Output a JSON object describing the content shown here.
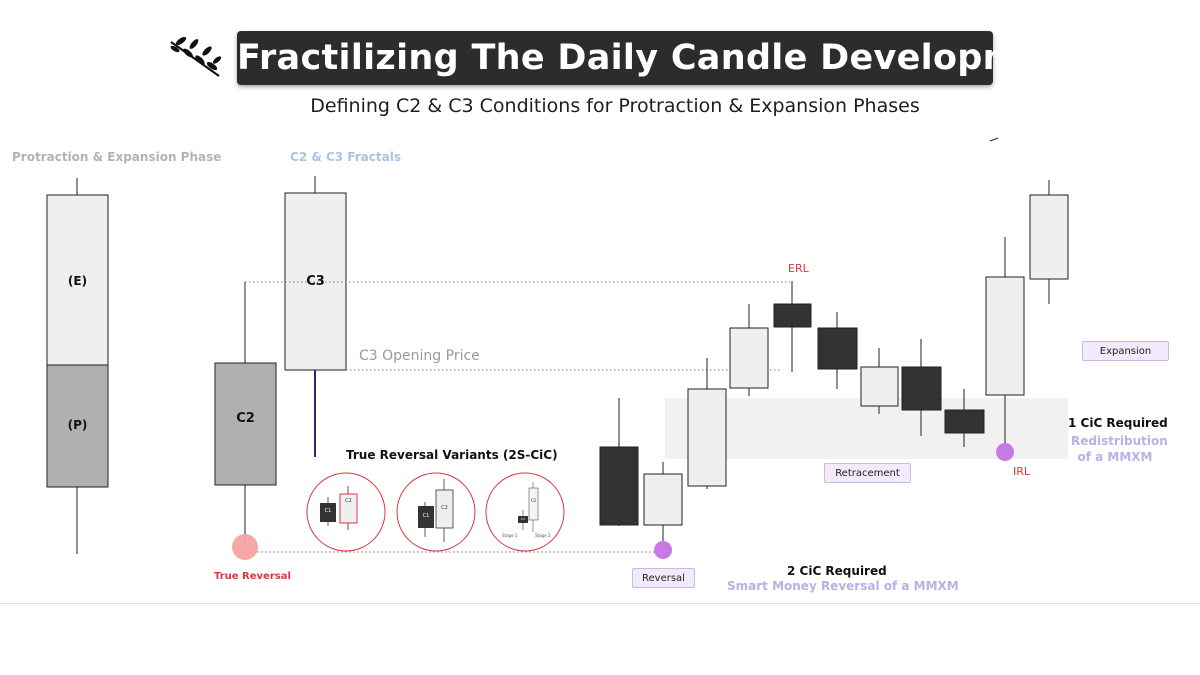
{
  "header": {
    "title": "Fractilizing The Daily Candle Development",
    "subtitle": "Defining C2 & C3 Conditions for Protraction & Expansion Phases"
  },
  "sections": {
    "phase_label": "Protraction & Expansion Phase",
    "fractals_label": "C2 & C3 Fractals"
  },
  "phase_candle": {
    "upper_label": "(E)",
    "lower_label": "(P)"
  },
  "fractal_candles": {
    "c2_label": "C2",
    "c3_label": "C3",
    "c3_open_label": "C3 Opening Price",
    "true_reversal_label": "True Reversal"
  },
  "variants": {
    "title": "True Reversal Variants (2S-CiC)",
    "v1": {
      "c1": "C1",
      "c2": "C2"
    },
    "v2": {
      "c1": "C1",
      "c2": "C2"
    },
    "v3": {
      "c1": "C1",
      "c2": "C2",
      "stage1": "Stage 1",
      "stage2": "Stage 2"
    }
  },
  "price_path": {
    "erl_label": "ERL",
    "irl_label": "IRL",
    "expansion_label": "Expansion",
    "retracement_label": "Retracement",
    "reversal_label": "Reversal",
    "cic1_title": "1 CiC Required",
    "cic1_sub_line1": "Redistribution",
    "cic1_sub_line2": "of a MMXM",
    "cic2_title": "2 CiC Required",
    "cic2_sub": "Smart Money Reversal of a MMXM"
  },
  "colors": {
    "accent_red": "#d8383f",
    "reversal_marker": "#f4a3a3",
    "purple_marker": "#c77ae6",
    "bear_candle": "#333333",
    "bull_candle": "#efefef",
    "protraction_fill": "#b0b0b0",
    "lavender_text": "#b7b2e6",
    "fractals_label_color": "#a9c3e8"
  },
  "icons": {
    "logo": "leaf-branch-icon"
  }
}
